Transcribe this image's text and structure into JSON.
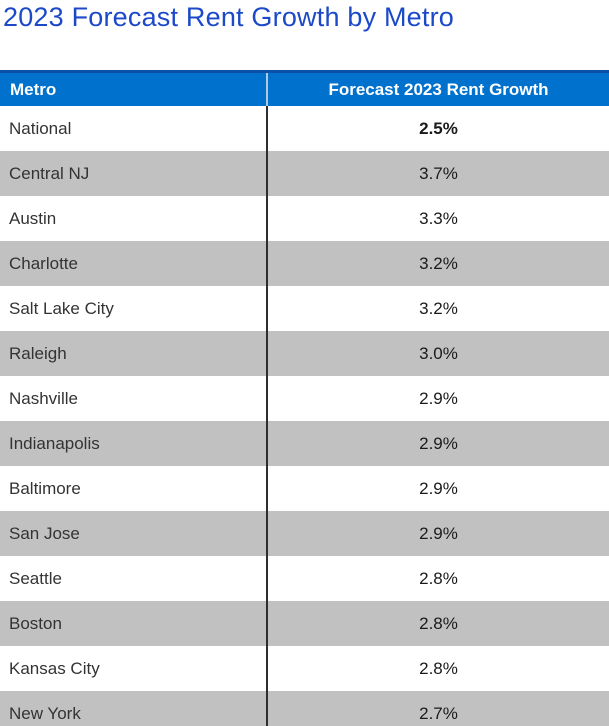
{
  "title": "2023 Forecast Rent Growth by Metro",
  "colors": {
    "title_text": "#1c49c8",
    "header_bg": "#0072ce",
    "header_top_border": "#0b4fa6",
    "header_divider": "#b3c8dc",
    "alt_row_bg": "#c1c1c1",
    "body_divider": "#2e2e2e",
    "body_text": "#333333"
  },
  "table": {
    "columns": [
      "Metro",
      "Forecast 2023 Rent Growth"
    ],
    "rows": [
      {
        "metro": "National",
        "value": "2.5%",
        "bold": true
      },
      {
        "metro": "Central NJ",
        "value": "3.7%",
        "bold": false
      },
      {
        "metro": "Austin",
        "value": "3.3%",
        "bold": false
      },
      {
        "metro": "Charlotte",
        "value": "3.2%",
        "bold": false
      },
      {
        "metro": "Salt Lake City",
        "value": "3.2%",
        "bold": false
      },
      {
        "metro": "Raleigh",
        "value": "3.0%",
        "bold": false
      },
      {
        "metro": "Nashville",
        "value": "2.9%",
        "bold": false
      },
      {
        "metro": "Indianapolis",
        "value": "2.9%",
        "bold": false
      },
      {
        "metro": "Baltimore",
        "value": "2.9%",
        "bold": false
      },
      {
        "metro": "San Jose",
        "value": "2.9%",
        "bold": false
      },
      {
        "metro": "Seattle",
        "value": "2.8%",
        "bold": false
      },
      {
        "metro": "Boston",
        "value": "2.8%",
        "bold": false
      },
      {
        "metro": "Kansas City",
        "value": "2.8%",
        "bold": false
      },
      {
        "metro": "New York",
        "value": "2.7%",
        "bold": false
      }
    ]
  },
  "chart_data": {
    "type": "table",
    "title": "2023 Forecast Rent Growth by Metro",
    "columns": [
      "Metro",
      "Forecast 2023 Rent Growth"
    ],
    "categories": [
      "National",
      "Central NJ",
      "Austin",
      "Charlotte",
      "Salt Lake City",
      "Raleigh",
      "Nashville",
      "Indianapolis",
      "Baltimore",
      "San Jose",
      "Seattle",
      "Boston",
      "Kansas City",
      "New York"
    ],
    "values": [
      2.5,
      3.7,
      3.3,
      3.2,
      3.2,
      3.0,
      2.9,
      2.9,
      2.9,
      2.9,
      2.8,
      2.8,
      2.8,
      2.7
    ],
    "value_unit": "%",
    "layout": "two-column table, alternating white/gray rows, blue header"
  }
}
